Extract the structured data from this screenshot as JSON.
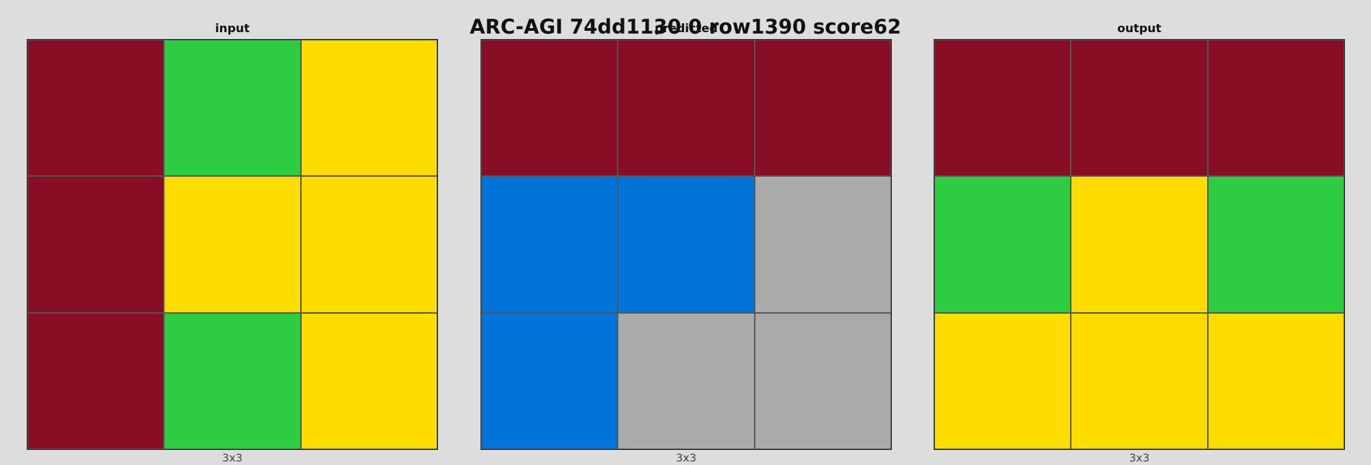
{
  "title": "ARC-AGI 74dd1130 0 row1390 score62",
  "palette": {
    "maroon": "#880e25",
    "green": "#2ecc40",
    "yellow": "#ffdc00",
    "blue": "#0074d9",
    "gray": "#aaaaaa"
  },
  "panels": [
    {
      "label": "input",
      "dims": "3x3",
      "grid": [
        [
          "maroon",
          "green",
          "yellow"
        ],
        [
          "maroon",
          "yellow",
          "yellow"
        ],
        [
          "maroon",
          "green",
          "yellow"
        ]
      ]
    },
    {
      "label": "predicted",
      "dims": "3x3",
      "grid": [
        [
          "maroon",
          "maroon",
          "maroon"
        ],
        [
          "blue",
          "blue",
          "gray"
        ],
        [
          "blue",
          "gray",
          "gray"
        ]
      ]
    },
    {
      "label": "output",
      "dims": "3x3",
      "grid": [
        [
          "maroon",
          "maroon",
          "maroon"
        ],
        [
          "green",
          "yellow",
          "green"
        ],
        [
          "yellow",
          "yellow",
          "yellow"
        ]
      ]
    }
  ]
}
